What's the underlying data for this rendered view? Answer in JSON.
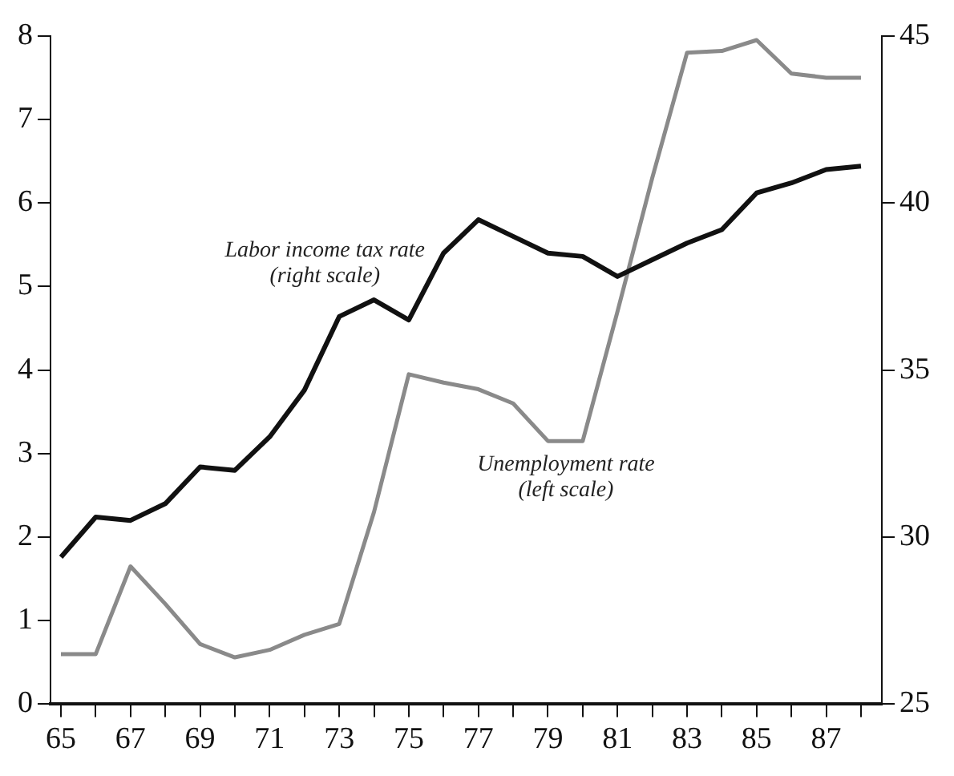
{
  "chart_data": {
    "type": "line",
    "x": [
      65,
      66,
      67,
      68,
      69,
      70,
      71,
      72,
      73,
      74,
      75,
      76,
      77,
      78,
      79,
      80,
      81,
      82,
      83,
      84,
      85,
      86,
      87,
      88
    ],
    "series": [
      {
        "name": "Labor income tax rate (right scale)",
        "color": "#111111",
        "axis": "y2",
        "values": [
          29.4,
          30.6,
          30.5,
          31.0,
          32.1,
          32.0,
          33.0,
          34.4,
          36.6,
          37.1,
          36.5,
          38.5,
          39.5,
          39.0,
          38.5,
          38.4,
          37.8,
          38.3,
          38.8,
          39.2,
          40.3,
          40.6,
          41.0,
          41.1
        ]
      },
      {
        "name": "Unemployment rate (left scale)",
        "color": "#8a8a8a",
        "values": [
          0.6,
          0.6,
          1.65,
          1.2,
          0.72,
          0.56,
          0.65,
          0.83,
          0.96,
          2.3,
          3.95,
          3.85,
          3.77,
          3.6,
          3.15,
          3.15,
          4.7,
          6.3,
          7.8,
          7.82,
          7.95,
          7.55,
          7.5,
          7.5
        ]
      }
    ],
    "xlim": [
      64.7,
      88.6
    ],
    "xticks": [
      65,
      {
        "value": 66,
        "label": null
      },
      67,
      {
        "value": 68,
        "label": null
      },
      69,
      {
        "value": 70,
        "label": null
      },
      71,
      {
        "value": 72,
        "label": null
      },
      73,
      {
        "value": 74,
        "label": null
      },
      75,
      {
        "value": 76,
        "label": null
      },
      77,
      {
        "value": 78,
        "label": null
      },
      79,
      {
        "value": 80,
        "label": null
      },
      81,
      {
        "value": 82,
        "label": null
      },
      83,
      {
        "value": 84,
        "label": null
      },
      85,
      {
        "value": 86,
        "label": null
      },
      87,
      {
        "value": 88,
        "label": null
      }
    ],
    "ylim": [
      0,
      8
    ],
    "yticks": [
      0,
      1,
      2,
      3,
      4,
      5,
      6,
      7,
      8
    ],
    "y2lim": [
      25,
      45
    ],
    "y2ticks": [
      25,
      30,
      35,
      40,
      45
    ],
    "grid": false,
    "legend": false,
    "marker": "none",
    "line_style": "solid"
  }
}
